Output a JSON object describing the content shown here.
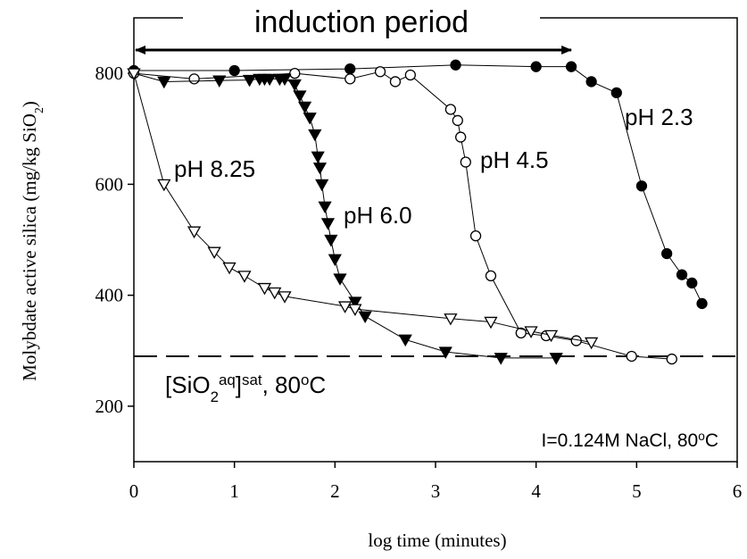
{
  "chart_data": {
    "type": "line",
    "title": "induction period",
    "x_label": "log time (minutes)",
    "y_label": [
      {
        "text": "Molybdate active silica (mg/kg SiO"
      },
      {
        "text": "2",
        "style": "sub"
      },
      {
        "text": ")"
      }
    ],
    "xlim": [
      0,
      6
    ],
    "xticks": [
      0,
      1,
      2,
      3,
      4,
      5,
      6
    ],
    "ylim": [
      100,
      900
    ],
    "yticks": [
      200,
      400,
      600,
      800
    ],
    "induction_period_x": [
      0,
      4.35
    ],
    "saturation": {
      "value": 290,
      "label": [
        {
          "text": "[SiO"
        },
        {
          "text": "2",
          "style": "sub"
        },
        {
          "text": "aq",
          "style": "sup"
        },
        {
          "text": "]"
        },
        {
          "text": "sat",
          "style": "sup"
        },
        {
          "text": ", 80"
        },
        {
          "text": "o",
          "style": "sup"
        },
        {
          "text": "C"
        }
      ]
    },
    "note": [
      {
        "text": "I=0.124M NaCl, 80"
      },
      {
        "text": "o",
        "style": "sup"
      },
      {
        "text": "C"
      }
    ],
    "series": [
      {
        "name": "pH 2.3",
        "color": "#000000",
        "marker": "circle",
        "marker_fill": "#000000",
        "x": [
          0,
          1,
          2.15,
          3.2,
          4.0,
          4.35,
          4.55,
          4.8,
          5.05,
          5.3,
          5.45,
          5.55,
          5.65
        ],
        "values": [
          805,
          805,
          808,
          815,
          812,
          812,
          785,
          765,
          597,
          475,
          437,
          422,
          385
        ]
      },
      {
        "name": "pH 4.5",
        "color": "#000000",
        "marker": "circle",
        "marker_fill": "#ffffff",
        "x": [
          0,
          0.6,
          1.6,
          2.15,
          2.45,
          2.6,
          2.75,
          3.15,
          3.22,
          3.25,
          3.3,
          3.4,
          3.55,
          3.85,
          4.1,
          4.4,
          4.95,
          5.35
        ],
        "values": [
          800,
          790,
          800,
          790,
          803,
          785,
          797,
          735,
          715,
          685,
          640,
          507,
          435,
          332,
          327,
          318,
          290,
          285
        ]
      },
      {
        "name": "pH 6.0",
        "color": "#000000",
        "marker": "triangle-down",
        "marker_fill": "#000000",
        "x": [
          0,
          0.3,
          0.85,
          1.15,
          1.25,
          1.3,
          1.35,
          1.45,
          1.5,
          1.6,
          1.65,
          1.7,
          1.75,
          1.8,
          1.83,
          1.85,
          1.87,
          1.9,
          1.93,
          1.96,
          2.0,
          2.05,
          2.2,
          2.3,
          2.7,
          3.1,
          3.65,
          4.2
        ],
        "values": [
          800,
          785,
          787,
          788,
          790,
          790,
          790,
          790,
          790,
          780,
          760,
          740,
          720,
          690,
          650,
          630,
          600,
          560,
          530,
          500,
          465,
          430,
          388,
          362,
          320,
          298,
          287,
          287
        ]
      },
      {
        "name": "pH 8.25",
        "color": "#000000",
        "marker": "triangle-down",
        "marker_fill": "#ffffff",
        "x": [
          0,
          0.3,
          0.6,
          0.8,
          0.95,
          1.1,
          1.3,
          1.4,
          1.5,
          2.1,
          2.2,
          3.15,
          3.55,
          3.95,
          4.15,
          4.55
        ],
        "values": [
          800,
          600,
          515,
          478,
          450,
          435,
          413,
          405,
          398,
          380,
          375,
          358,
          352,
          335,
          328,
          315
        ]
      }
    ]
  }
}
